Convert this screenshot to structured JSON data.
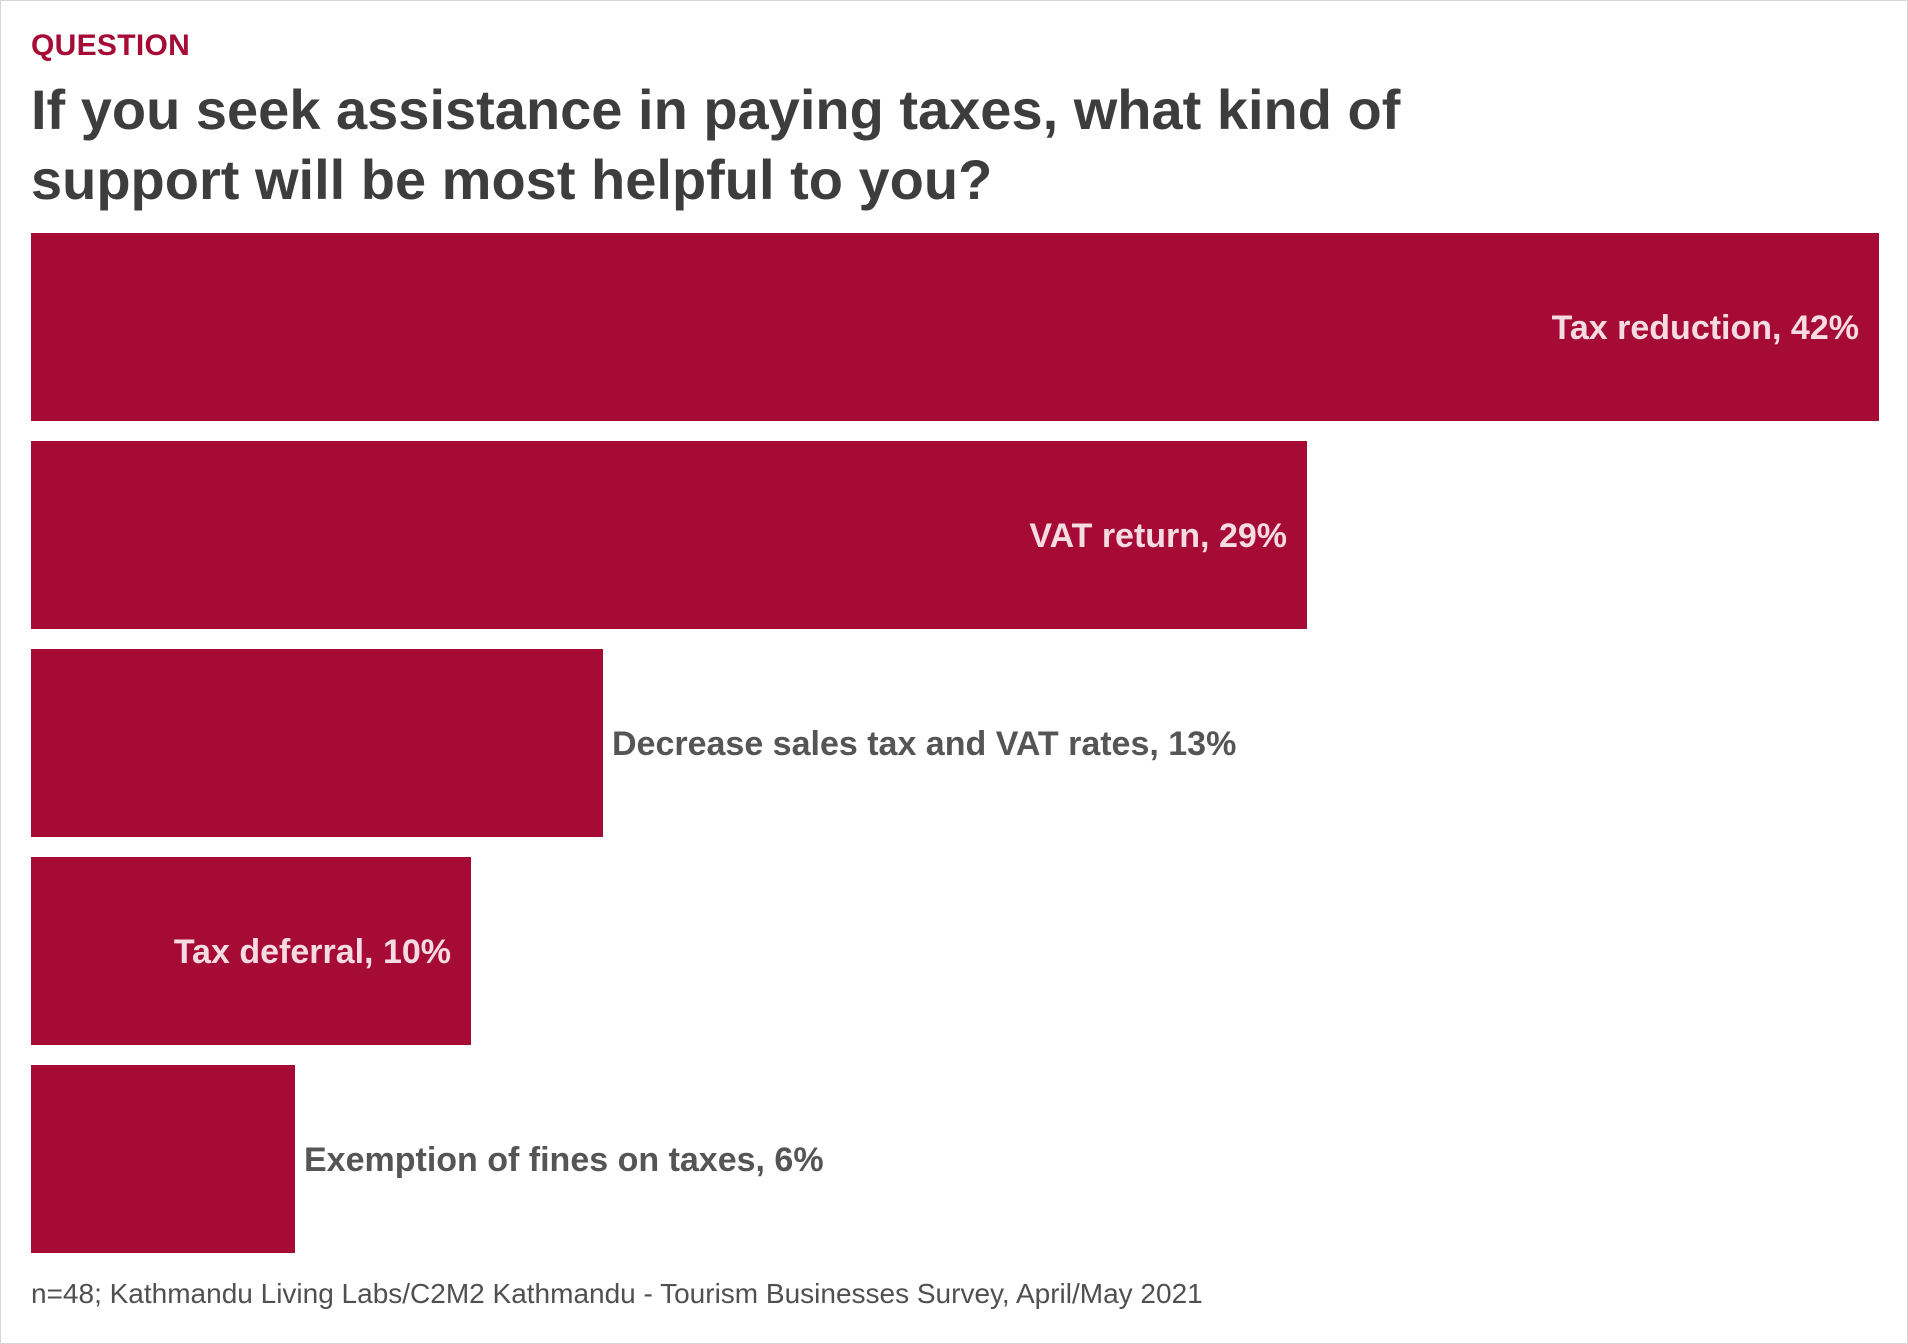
{
  "header": {
    "kicker": "QUESTION",
    "title": "If you seek assistance in paying taxes, what kind of support will be most helpful to you?"
  },
  "colors": {
    "bar": "#a50b35",
    "label_inside": "#f7dbe2",
    "label_outside": "#555555"
  },
  "chart_data": {
    "type": "bar",
    "orientation": "horizontal",
    "categories": [
      "Tax reduction",
      "VAT return",
      "Decrease sales tax and VAT rates",
      "Tax deferral",
      "Exemption of fines on taxes"
    ],
    "values": [
      42,
      29,
      13,
      10,
      6
    ],
    "data_labels": [
      "Tax reduction, 42%",
      "VAT return, 29%",
      "Decrease sales tax and VAT rates, 13%",
      "Tax deferral, 10%",
      "Exemption of fines on taxes, 6%"
    ],
    "unit": "%",
    "xlim": [
      0,
      42
    ],
    "grid": false,
    "legend": "none"
  },
  "footer": {
    "source": "n=48; Kathmandu Living Labs/C2M2 Kathmandu - Tourism Businesses Survey, April/May 2021"
  }
}
